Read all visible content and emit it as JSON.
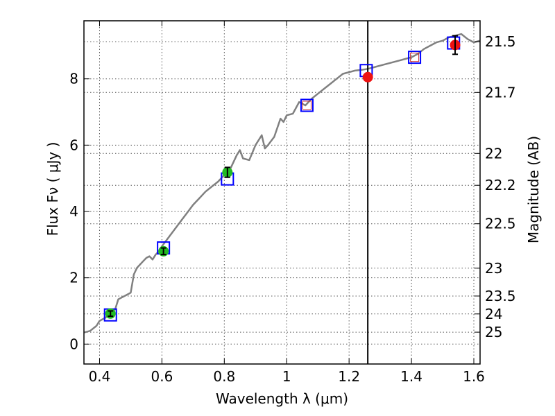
{
  "chart_data": {
    "type": "scatter",
    "xlabel": "Wavelength  λ (μm)",
    "ylabel": "Flux  Fν  ( μJy )",
    "y2label": "Magnitude (AB)",
    "xlim": [
      0.35,
      1.62
    ],
    "ylim": [
      -0.6,
      9.75
    ],
    "xticks": [
      0.4,
      0.6,
      0.8,
      1.0,
      1.2,
      1.4,
      1.6
    ],
    "xtick_labels": [
      "0.4",
      "0.6",
      "0.8",
      "1",
      "1.2",
      "1.4",
      "1.6"
    ],
    "yticks": [
      0,
      2,
      4,
      6,
      8
    ],
    "ytick_labels": [
      "0",
      "2",
      "4",
      "6",
      "8"
    ],
    "y2ticks": [
      {
        "label": "21.5",
        "flux": 9.12
      },
      {
        "label": "21.7",
        "flux": 7.59
      },
      {
        "label": "22",
        "flux": 5.75
      },
      {
        "label": "22.2",
        "flux": 4.79
      },
      {
        "label": "22.5",
        "flux": 3.63
      },
      {
        "label": "23",
        "flux": 2.29
      },
      {
        "label": "23.5",
        "flux": 1.45
      },
      {
        "label": "24",
        "flux": 0.91
      },
      {
        "label": "25",
        "flux": 0.36
      }
    ],
    "grid": true,
    "vertical_line_x": 1.26,
    "colors": {
      "model": "#808080",
      "box": "#0000ff",
      "hollow_box": "#cc3333",
      "green": "#22bb22",
      "red": "#ee1111"
    },
    "model_spectrum": {
      "x": [
        0.35,
        0.37,
        0.39,
        0.4,
        0.41,
        0.42,
        0.43,
        0.44,
        0.45,
        0.46,
        0.47,
        0.48,
        0.49,
        0.5,
        0.51,
        0.52,
        0.53,
        0.54,
        0.55,
        0.56,
        0.57,
        0.58,
        0.59,
        0.6,
        0.62,
        0.64,
        0.66,
        0.68,
        0.7,
        0.72,
        0.74,
        0.76,
        0.78,
        0.8,
        0.82,
        0.84,
        0.85,
        0.86,
        0.88,
        0.9,
        0.92,
        0.93,
        0.94,
        0.96,
        0.98,
        0.99,
        1.0,
        1.02,
        1.04,
        1.06,
        1.08,
        1.1,
        1.12,
        1.14,
        1.16,
        1.18,
        1.2,
        1.22,
        1.24,
        1.26,
        1.28,
        1.3,
        1.32,
        1.34,
        1.36,
        1.38,
        1.4,
        1.42,
        1.44,
        1.46,
        1.48,
        1.5,
        1.52,
        1.54,
        1.56,
        1.58,
        1.6,
        1.62
      ],
      "y": [
        0.35,
        0.4,
        0.55,
        0.7,
        0.75,
        0.8,
        0.95,
        1.0,
        1.05,
        1.35,
        1.4,
        1.45,
        1.5,
        1.55,
        2.1,
        2.3,
        2.4,
        2.5,
        2.6,
        2.65,
        2.55,
        2.7,
        2.8,
        2.95,
        3.2,
        3.45,
        3.7,
        3.95,
        4.2,
        4.4,
        4.6,
        4.75,
        4.9,
        5.1,
        5.3,
        5.7,
        5.85,
        5.6,
        5.55,
        6.0,
        6.3,
        5.9,
        6.0,
        6.25,
        6.8,
        6.7,
        6.9,
        6.95,
        7.3,
        7.2,
        7.4,
        7.55,
        7.7,
        7.85,
        8.0,
        8.15,
        8.2,
        8.25,
        8.27,
        8.3,
        8.35,
        8.4,
        8.45,
        8.5,
        8.55,
        8.6,
        8.65,
        8.75,
        8.9,
        9.0,
        9.1,
        9.15,
        9.25,
        9.3,
        9.35,
        9.2,
        9.1,
        9.15
      ]
    },
    "synthetic_photometry": [
      {
        "x": 0.435,
        "y": 0.88,
        "hollow": false
      },
      {
        "x": 0.605,
        "y": 2.9,
        "hollow": false
      },
      {
        "x": 0.81,
        "y": 4.98,
        "hollow": false
      },
      {
        "x": 1.065,
        "y": 7.2,
        "hollow": true
      },
      {
        "x": 1.255,
        "y": 8.25,
        "hollow": false
      },
      {
        "x": 1.41,
        "y": 8.65,
        "hollow": true
      },
      {
        "x": 1.535,
        "y": 9.08,
        "hollow": false
      }
    ],
    "observed_points": [
      {
        "x": 0.435,
        "y": 0.92,
        "yerr": 0.08,
        "color": "green"
      },
      {
        "x": 0.605,
        "y": 2.8,
        "yerr": 0.1,
        "color": "green"
      },
      {
        "x": 0.81,
        "y": 5.18,
        "yerr": 0.15,
        "color": "green"
      },
      {
        "x": 1.26,
        "y": 8.05,
        "yerr": 0.0,
        "color": "red"
      },
      {
        "x": 1.54,
        "y": 9.02,
        "yerr": 0.28,
        "color": "red"
      }
    ]
  }
}
